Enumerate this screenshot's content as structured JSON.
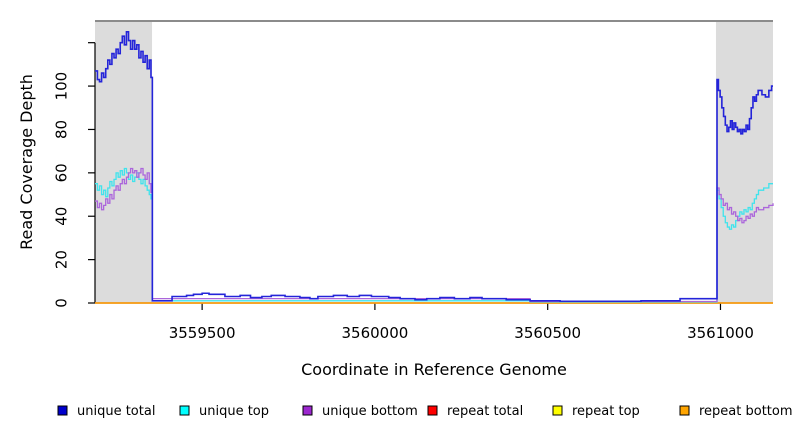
{
  "chart_data": {
    "type": "line",
    "title": "",
    "xlabel": "Coordinate in Reference Genome",
    "ylabel": "Read Coverage Depth",
    "xlim": [
      3559190,
      3561152
    ],
    "ylim": [
      0,
      130
    ],
    "grid": false,
    "x_ticks": [
      {
        "value": 3559500,
        "label": "3559500"
      },
      {
        "value": 3560000,
        "label": "3560000"
      },
      {
        "value": 3560500,
        "label": "3560500"
      },
      {
        "value": 3561000,
        "label": "3561000"
      }
    ],
    "y_ticks": [
      {
        "value": 0,
        "label": "0"
      },
      {
        "value": 20,
        "label": "20"
      },
      {
        "value": 40,
        "label": "40"
      },
      {
        "value": 60,
        "label": "60"
      },
      {
        "value": 80,
        "label": "80"
      },
      {
        "value": 100,
        "label": "100"
      },
      {
        "value": 120,
        "label": ""
      }
    ],
    "shaded_regions": [
      {
        "start": 3559190,
        "end": 3559355,
        "fill": "#DCDCDC"
      },
      {
        "start": 3560987,
        "end": 3561152,
        "fill": "#DCDCDC"
      }
    ],
    "top_border_color": "#8B8B8B",
    "legend_position": "bottom",
    "series": [
      {
        "name": "repeat total",
        "line_color": "#EE1111",
        "legend_color": "#FF0000",
        "points": [
          [
            3559190,
            0
          ],
          [
            3561152,
            0
          ]
        ]
      },
      {
        "name": "repeat top",
        "line_color": "#FFFF00",
        "legend_color": "#FFFF00",
        "points": [
          [
            3559190,
            0
          ],
          [
            3561152,
            0
          ]
        ]
      },
      {
        "name": "repeat bottom",
        "line_color": "#FFA216",
        "legend_color": "#FFA500",
        "points": [
          [
            3559190,
            0
          ],
          [
            3561152,
            0
          ]
        ]
      },
      {
        "name": "unique top",
        "line_color": "#3FE3EC",
        "legend_color": "#00FFFF",
        "points": [
          [
            3559190,
            55
          ],
          [
            3559197,
            52
          ],
          [
            3559203,
            54
          ],
          [
            3559209,
            50
          ],
          [
            3559215,
            52
          ],
          [
            3559221,
            49
          ],
          [
            3559227,
            53
          ],
          [
            3559233,
            56
          ],
          [
            3559239,
            54
          ],
          [
            3559245,
            57
          ],
          [
            3559251,
            60
          ],
          [
            3559257,
            58
          ],
          [
            3559263,
            61
          ],
          [
            3559269,
            59
          ],
          [
            3559275,
            62
          ],
          [
            3559281,
            60
          ],
          [
            3559287,
            57
          ],
          [
            3559293,
            59
          ],
          [
            3559299,
            56
          ],
          [
            3559305,
            58
          ],
          [
            3559311,
            60
          ],
          [
            3559317,
            57
          ],
          [
            3559323,
            55
          ],
          [
            3559329,
            57
          ],
          [
            3559335,
            54
          ],
          [
            3559341,
            52
          ],
          [
            3559347,
            50
          ],
          [
            3559352,
            48
          ],
          [
            3559356,
            1
          ],
          [
            3560449,
            0.5
          ],
          [
            3560880,
            0.5
          ],
          [
            3560990,
            52
          ],
          [
            3560996,
            48
          ],
          [
            3561002,
            44
          ],
          [
            3561008,
            40
          ],
          [
            3561014,
            37
          ],
          [
            3561020,
            35
          ],
          [
            3561026,
            34
          ],
          [
            3561032,
            36
          ],
          [
            3561038,
            35
          ],
          [
            3561044,
            38
          ],
          [
            3561050,
            40
          ],
          [
            3561056,
            42
          ],
          [
            3561062,
            41
          ],
          [
            3561068,
            43
          ],
          [
            3561074,
            42
          ],
          [
            3561080,
            44
          ],
          [
            3561086,
            43
          ],
          [
            3561092,
            46
          ],
          [
            3561098,
            48
          ],
          [
            3561104,
            50
          ],
          [
            3561110,
            52
          ],
          [
            3561125,
            53
          ],
          [
            3561140,
            55
          ],
          [
            3561152,
            55
          ]
        ]
      },
      {
        "name": "unique bottom",
        "line_color": "#AB66DB",
        "legend_color": "#9C27CF",
        "points": [
          [
            3559190,
            47
          ],
          [
            3559197,
            44
          ],
          [
            3559203,
            46
          ],
          [
            3559209,
            43
          ],
          [
            3559215,
            45
          ],
          [
            3559221,
            48
          ],
          [
            3559227,
            46
          ],
          [
            3559233,
            50
          ],
          [
            3559239,
            48
          ],
          [
            3559245,
            52
          ],
          [
            3559251,
            54
          ],
          [
            3559257,
            52
          ],
          [
            3559263,
            55
          ],
          [
            3559269,
            57
          ],
          [
            3559275,
            55
          ],
          [
            3559281,
            58
          ],
          [
            3559287,
            60
          ],
          [
            3559293,
            62
          ],
          [
            3559299,
            60
          ],
          [
            3559305,
            61
          ],
          [
            3559311,
            58
          ],
          [
            3559317,
            60
          ],
          [
            3559323,
            62
          ],
          [
            3559329,
            59
          ],
          [
            3559335,
            57
          ],
          [
            3559341,
            60
          ],
          [
            3559347,
            55
          ],
          [
            3559352,
            51
          ],
          [
            3559356,
            2
          ],
          [
            3560449,
            0.7
          ],
          [
            3560880,
            0.7
          ],
          [
            3560990,
            53
          ],
          [
            3560996,
            50
          ],
          [
            3561002,
            48
          ],
          [
            3561008,
            45
          ],
          [
            3561014,
            46
          ],
          [
            3561020,
            43
          ],
          [
            3561026,
            44
          ],
          [
            3561032,
            41
          ],
          [
            3561038,
            42
          ],
          [
            3561044,
            40
          ],
          [
            3561050,
            38
          ],
          [
            3561056,
            39
          ],
          [
            3561062,
            37
          ],
          [
            3561068,
            38
          ],
          [
            3561074,
            40
          ],
          [
            3561080,
            39
          ],
          [
            3561086,
            41
          ],
          [
            3561092,
            40
          ],
          [
            3561098,
            42
          ],
          [
            3561104,
            44
          ],
          [
            3561110,
            43
          ],
          [
            3561125,
            44
          ],
          [
            3561140,
            45
          ],
          [
            3561152,
            46
          ]
        ]
      },
      {
        "name": "unique total",
        "line_color": "#2424D9",
        "legend_color": "#0000CD",
        "points": [
          [
            3559190,
            107
          ],
          [
            3559197,
            103
          ],
          [
            3559203,
            102
          ],
          [
            3559209,
            106
          ],
          [
            3559215,
            104
          ],
          [
            3559221,
            108
          ],
          [
            3559227,
            112
          ],
          [
            3559233,
            110
          ],
          [
            3559239,
            115
          ],
          [
            3559245,
            113
          ],
          [
            3559251,
            117
          ],
          [
            3559257,
            115
          ],
          [
            3559263,
            120
          ],
          [
            3559269,
            123
          ],
          [
            3559275,
            119
          ],
          [
            3559281,
            125
          ],
          [
            3559287,
            121
          ],
          [
            3559293,
            117
          ],
          [
            3559299,
            121
          ],
          [
            3559305,
            117
          ],
          [
            3559311,
            119
          ],
          [
            3559317,
            113
          ],
          [
            3559323,
            116
          ],
          [
            3559329,
            111
          ],
          [
            3559335,
            114
          ],
          [
            3559341,
            108
          ],
          [
            3559347,
            112
          ],
          [
            3559352,
            104
          ],
          [
            3559356,
            1
          ],
          [
            3559413,
            3
          ],
          [
            3559455,
            3.5
          ],
          [
            3559475,
            4
          ],
          [
            3559500,
            4.5
          ],
          [
            3559520,
            4
          ],
          [
            3559566,
            3
          ],
          [
            3559610,
            3.5
          ],
          [
            3559640,
            2.5
          ],
          [
            3559673,
            3
          ],
          [
            3559700,
            3.5
          ],
          [
            3559740,
            3
          ],
          [
            3559783,
            2.5
          ],
          [
            3559812,
            2
          ],
          [
            3559835,
            3
          ],
          [
            3559880,
            3.5
          ],
          [
            3559920,
            3
          ],
          [
            3559955,
            3.5
          ],
          [
            3559990,
            3
          ],
          [
            3560040,
            2.5
          ],
          [
            3560073,
            2
          ],
          [
            3560116,
            1.5
          ],
          [
            3560150,
            2
          ],
          [
            3560188,
            2.5
          ],
          [
            3560230,
            2
          ],
          [
            3560275,
            2.5
          ],
          [
            3560310,
            2
          ],
          [
            3560380,
            1.5
          ],
          [
            3560449,
            1
          ],
          [
            3560536,
            0.8
          ],
          [
            3560700,
            0.8
          ],
          [
            3560770,
            1
          ],
          [
            3560883,
            2
          ],
          [
            3560990,
            103
          ],
          [
            3560994,
            98
          ],
          [
            3560999,
            95
          ],
          [
            3561004,
            90
          ],
          [
            3561009,
            86
          ],
          [
            3561014,
            82
          ],
          [
            3561019,
            79
          ],
          [
            3561024,
            81
          ],
          [
            3561029,
            84
          ],
          [
            3561034,
            80
          ],
          [
            3561039,
            83
          ],
          [
            3561044,
            81
          ],
          [
            3561049,
            79
          ],
          [
            3561054,
            80
          ],
          [
            3561059,
            78
          ],
          [
            3561064,
            80
          ],
          [
            3561069,
            79
          ],
          [
            3561074,
            82
          ],
          [
            3561079,
            80
          ],
          [
            3561084,
            85
          ],
          [
            3561089,
            90
          ],
          [
            3561094,
            95
          ],
          [
            3561099,
            93
          ],
          [
            3561104,
            96
          ],
          [
            3561109,
            98
          ],
          [
            3561120,
            96
          ],
          [
            3561130,
            95
          ],
          [
            3561140,
            98
          ],
          [
            3561148,
            100
          ],
          [
            3561152,
            100
          ]
        ]
      }
    ],
    "legend": [
      {
        "label": "unique total",
        "color": "#0000CD"
      },
      {
        "label": "unique top",
        "color": "#00FFFF"
      },
      {
        "label": "unique bottom",
        "color": "#9C27CF"
      },
      {
        "label": "repeat total",
        "color": "#FF0000"
      },
      {
        "label": "repeat top",
        "color": "#FFFF00"
      },
      {
        "label": "repeat bottom",
        "color": "#FFA500"
      }
    ]
  }
}
